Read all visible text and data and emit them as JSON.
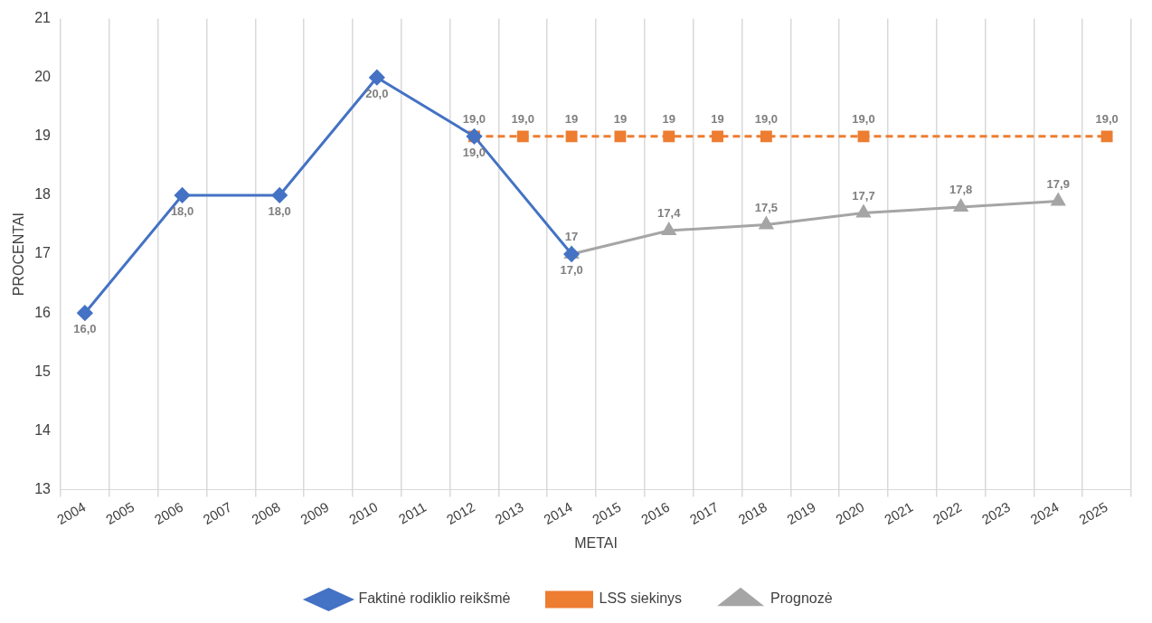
{
  "chart_data": {
    "type": "line",
    "xlabel": "METAI",
    "ylabel": "PROCENTAI",
    "categories": [
      "2004",
      "2005",
      "2006",
      "2007",
      "2008",
      "2009",
      "2010",
      "2011",
      "2012",
      "2013",
      "2014",
      "2015",
      "2016",
      "2017",
      "2018",
      "2019",
      "2020",
      "2021",
      "2022",
      "2023",
      "2024",
      "2025"
    ],
    "series": [
      {
        "name": "Faktinė rodiklio reikšmė",
        "color": "#4472c4",
        "marker": "diamond",
        "line_style": "solid",
        "values": [
          16,
          null,
          18,
          null,
          18,
          null,
          20,
          null,
          19,
          null,
          17,
          null,
          null,
          null,
          null,
          null,
          null,
          null,
          null,
          null,
          null,
          null
        ],
        "value_labels": [
          "16,0",
          null,
          "18,0",
          null,
          "18,0",
          null,
          "20,0",
          null,
          "19,0",
          null,
          "17,0",
          null,
          null,
          null,
          null,
          null,
          null,
          null,
          null,
          null,
          null,
          null
        ]
      },
      {
        "name": "LSS siekinys",
        "color": "#ed7d31",
        "marker": "square",
        "line_style": "dashed",
        "values": [
          null,
          null,
          null,
          null,
          null,
          null,
          null,
          null,
          19,
          19,
          19,
          19,
          19,
          19,
          19,
          null,
          19,
          null,
          null,
          null,
          null,
          19
        ],
        "value_labels": [
          null,
          null,
          null,
          null,
          null,
          null,
          null,
          null,
          "19,0",
          "19,0",
          "19",
          "19",
          "19",
          "19",
          "19,0",
          null,
          "19,0",
          null,
          null,
          null,
          null,
          "19,0"
        ]
      },
      {
        "name": "Prognozė",
        "color": "#a5a5a5",
        "marker": "triangle",
        "line_style": "solid",
        "values": [
          null,
          null,
          null,
          null,
          null,
          null,
          null,
          null,
          null,
          null,
          17,
          null,
          17.4,
          null,
          17.5,
          null,
          17.7,
          null,
          17.8,
          null,
          17.9,
          null
        ],
        "value_labels": [
          null,
          null,
          null,
          null,
          null,
          null,
          null,
          null,
          null,
          null,
          "17",
          null,
          "17,4",
          null,
          "17,5",
          null,
          "17,7",
          null,
          "17,8",
          null,
          "17,9",
          null
        ]
      }
    ],
    "ylim": [
      13,
      21
    ],
    "yticks": [
      13,
      14,
      15,
      16,
      17,
      18,
      19,
      20,
      21
    ],
    "grid": "x",
    "legend": "bottom"
  }
}
